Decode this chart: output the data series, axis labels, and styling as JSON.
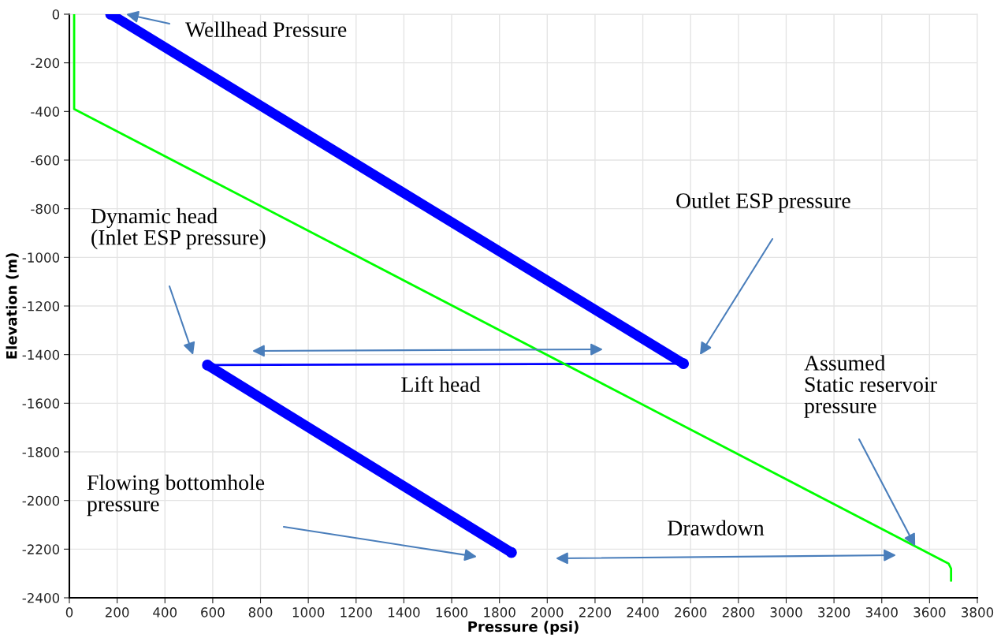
{
  "chart_data": {
    "type": "line",
    "xlabel": "Pressure (psi)",
    "ylabel": "Elevation (m)",
    "xlim": [
      0,
      3800
    ],
    "ylim": [
      -2400,
      0
    ],
    "xticks": [
      0,
      200,
      400,
      600,
      800,
      1000,
      1200,
      1400,
      1600,
      1800,
      2000,
      2200,
      2400,
      2600,
      2800,
      3000,
      3200,
      3400,
      3600,
      3800
    ],
    "yticks": [
      -2400,
      -2200,
      -2000,
      -1800,
      -1600,
      -1400,
      -1200,
      -1000,
      -800,
      -600,
      -400,
      -200,
      0
    ],
    "grid": true,
    "line_style": "solid",
    "series": [
      {
        "color": "#0000ff",
        "marker": "circle",
        "x": [
          173,
          2570
        ],
        "values": [
          0,
          -1437
        ]
      },
      {
        "color": "#0000ff",
        "x": [
          2570,
          578
        ],
        "values": [
          -1437,
          -1443
        ]
      },
      {
        "color": "#0000ff",
        "marker": "circle",
        "x": [
          578,
          1850
        ],
        "values": [
          -1443,
          -2214
        ]
      },
      {
        "color": "#00ff00",
        "x": [
          20,
          20,
          3680,
          3690,
          3690
        ],
        "values": [
          0,
          -390,
          -2260,
          -2280,
          -2330
        ]
      }
    ],
    "annotations": [
      "Wellhead Pressure",
      "Outlet ESP pressure",
      "Dynamic head\n(Inlet ESP pressure)",
      "Lift head",
      "Flowing bottomhole\npressure",
      "Drawdown",
      {
        "text": "Assumed\nStatic reservoir\npressure",
        "x": 3540,
        "y": -2188
      }
    ]
  }
}
